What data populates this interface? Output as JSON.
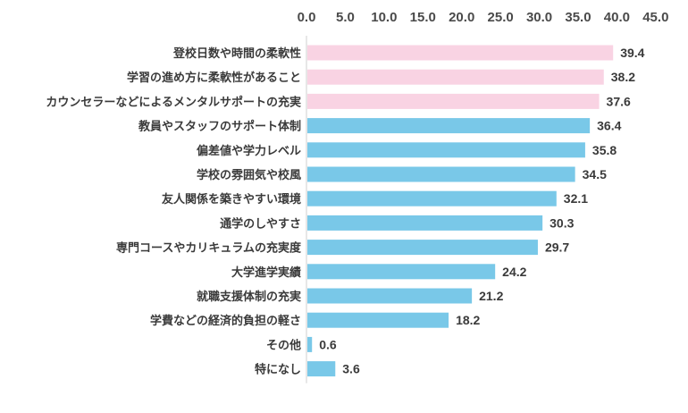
{
  "chart_data": {
    "type": "bar",
    "orientation": "horizontal",
    "title": "",
    "xlabel": "",
    "ylabel": "",
    "xlim": [
      0,
      45
    ],
    "x_ticks": [
      "0.0",
      "5.0",
      "10.0",
      "15.0",
      "20.0",
      "25.0",
      "30.0",
      "35.0",
      "40.0",
      "45.0"
    ],
    "x_axis_position": "top",
    "grid": false,
    "legend": "none",
    "categories": [
      "登校日数や時間の柔軟性",
      "学習の進め方に柔軟性があること",
      "カウンセラーなどによるメンタルサポートの充実",
      "教員やスタッフのサポート体制",
      "偏差値や学力レベル",
      "学校の雰囲気や校風",
      "友人関係を築きやすい環境",
      "通学のしやすさ",
      "専門コースやカリキュラムの充実度",
      "大学進学実績",
      "就職支援体制の充実",
      "学費などの経済的負担の軽さ",
      "その他",
      "特になし"
    ],
    "values": [
      39.4,
      38.2,
      37.6,
      36.4,
      35.8,
      34.5,
      32.1,
      30.3,
      29.7,
      24.2,
      21.2,
      18.2,
      0.6,
      3.6
    ],
    "value_labels": [
      "39.4",
      "38.2",
      "37.6",
      "36.4",
      "35.8",
      "34.5",
      "32.1",
      "30.3",
      "29.7",
      "24.2",
      "21.2",
      "18.2",
      "0.6",
      "3.6"
    ],
    "bar_colors": [
      "#f9d3e3",
      "#f9d3e3",
      "#f9d3e3",
      "#79c8e8",
      "#79c8e8",
      "#79c8e8",
      "#79c8e8",
      "#79c8e8",
      "#79c8e8",
      "#79c8e8",
      "#79c8e8",
      "#79c8e8",
      "#79c8e8",
      "#79c8e8"
    ],
    "axis_line_color": "#cfcfcf"
  }
}
